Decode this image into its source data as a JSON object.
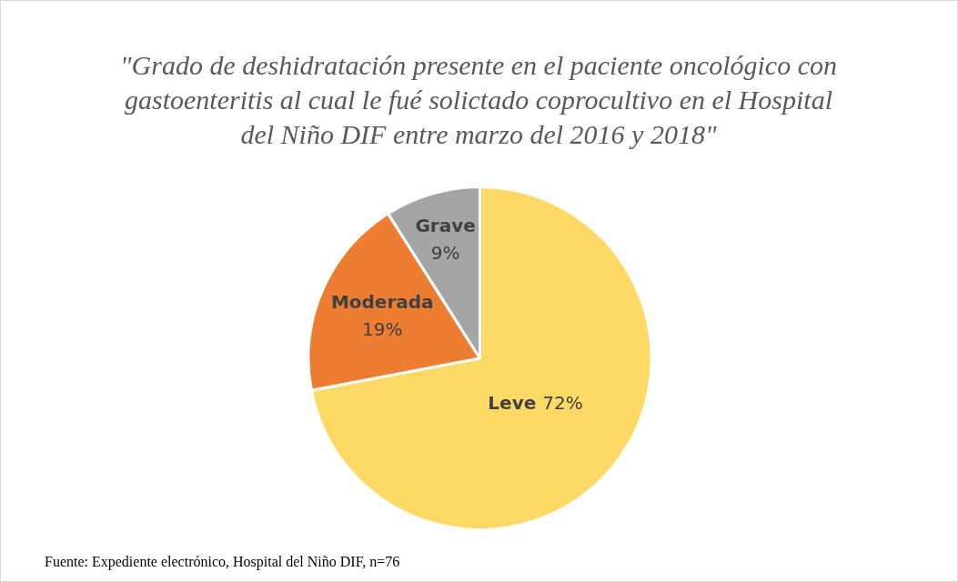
{
  "chart_data": {
    "type": "pie",
    "title": "\"Grado de deshidratación presente en el paciente oncológico con gastoenteritis al cual le fué solictado coprocultivo en el Hospital del Niño DIF entre marzo del 2016 y 2018\"",
    "categories": [
      "Leve",
      "Moderada",
      "Grave"
    ],
    "values": [
      72,
      19,
      9
    ],
    "colors": [
      "#ffd966",
      "#ed7d31",
      "#a5a5a5"
    ],
    "value_labels": [
      "72%",
      "19%",
      "9%"
    ],
    "legend": false,
    "annotations": [
      "Fuente: Expediente electrónico, Hospital del Niño DIF, n=76"
    ]
  }
}
